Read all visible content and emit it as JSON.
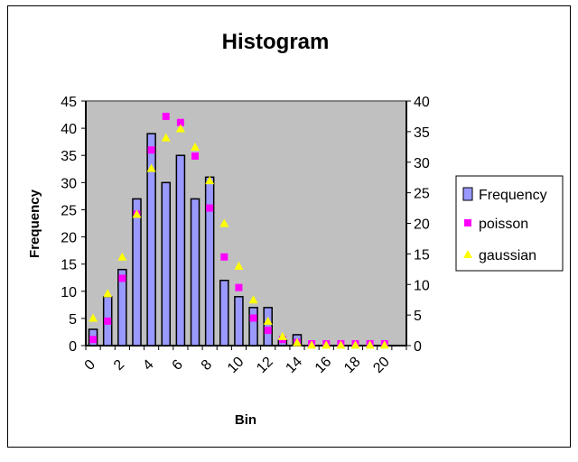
{
  "chart_data": {
    "type": "bar",
    "title": "Histogram",
    "xlabel": "Bin",
    "ylabel": "Frequency",
    "ylim": [
      0,
      45
    ],
    "y2lim": [
      0,
      40
    ],
    "yticks": [
      0,
      5,
      10,
      15,
      20,
      25,
      30,
      35,
      40,
      45
    ],
    "y2ticks": [
      0,
      5,
      10,
      15,
      20,
      25,
      30,
      35,
      40
    ],
    "categories": [
      0,
      1,
      2,
      3,
      4,
      5,
      6,
      7,
      8,
      9,
      10,
      11,
      12,
      13,
      14,
      15,
      16,
      17,
      18,
      19,
      20,
      21
    ],
    "xtick_labels": [
      "0",
      "2",
      "4",
      "6",
      "8",
      "10",
      "12",
      "14",
      "16",
      "18",
      "20"
    ],
    "series": [
      {
        "name": "Frequency",
        "kind": "bar",
        "axis": "left",
        "color": "#9999ff",
        "values": [
          3,
          9,
          14,
          27,
          39,
          30,
          35,
          27,
          31,
          12,
          9,
          7,
          7,
          1,
          2,
          0,
          0,
          0,
          0,
          0,
          0,
          0
        ]
      },
      {
        "name": "poisson",
        "kind": "square",
        "axis": "right",
        "color": "#ff00ff",
        "values": [
          1,
          4,
          11,
          21.5,
          32,
          37.5,
          36.5,
          31,
          22.5,
          14.5,
          9.5,
          4.5,
          2.5,
          1,
          0.5,
          0.3,
          0.3,
          0.3,
          0.3,
          0.3,
          0.3,
          null
        ]
      },
      {
        "name": "gaussian",
        "kind": "triangle",
        "axis": "right",
        "color": "#ffff00",
        "values": [
          4.5,
          8.5,
          14.5,
          21.5,
          29,
          34,
          35.5,
          32.5,
          27,
          20,
          13,
          7.5,
          4,
          1.5,
          0.5,
          0.1,
          0.1,
          0.1,
          0.1,
          0.1,
          0.1,
          null
        ]
      }
    ],
    "legend": "right",
    "plot_background": "#c0c0c0"
  }
}
